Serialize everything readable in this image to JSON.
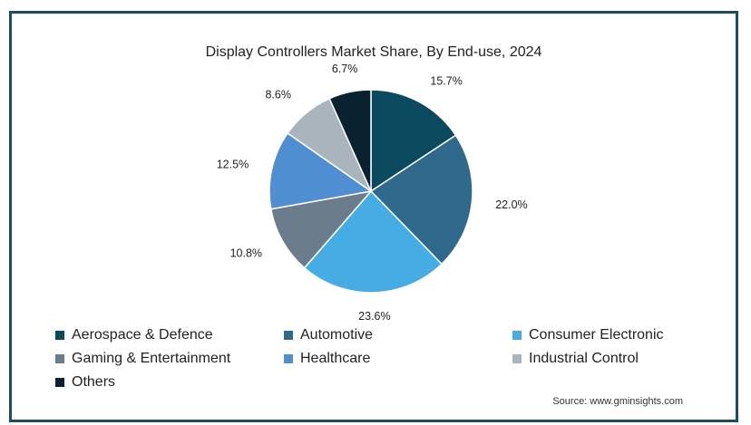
{
  "chart_data": {
    "type": "pie",
    "title": "Display Controllers Market Share, By End-use, 2024",
    "categories": [
      "Aerospace & Defence",
      "Automotive",
      "Consumer Electronic",
      "Gaming & Entertainment",
      "Healthcare",
      "Industrial Control",
      "Others"
    ],
    "values": [
      15.7,
      22.0,
      23.6,
      10.8,
      12.5,
      8.6,
      6.7
    ],
    "labels": [
      "15.7%",
      "22.0%",
      "23.6%",
      "10.8%",
      "12.5%",
      "8.6%",
      "6.7%"
    ],
    "colors": [
      "#0b4a5e",
      "#2f6a8c",
      "#45ade3",
      "#6b7d8c",
      "#4f8fd1",
      "#a9b4bc",
      "#0a2230"
    ],
    "legend_position": "bottom",
    "start": "top",
    "direction": "clockwise"
  },
  "source": "Source: www.gminsights.com"
}
